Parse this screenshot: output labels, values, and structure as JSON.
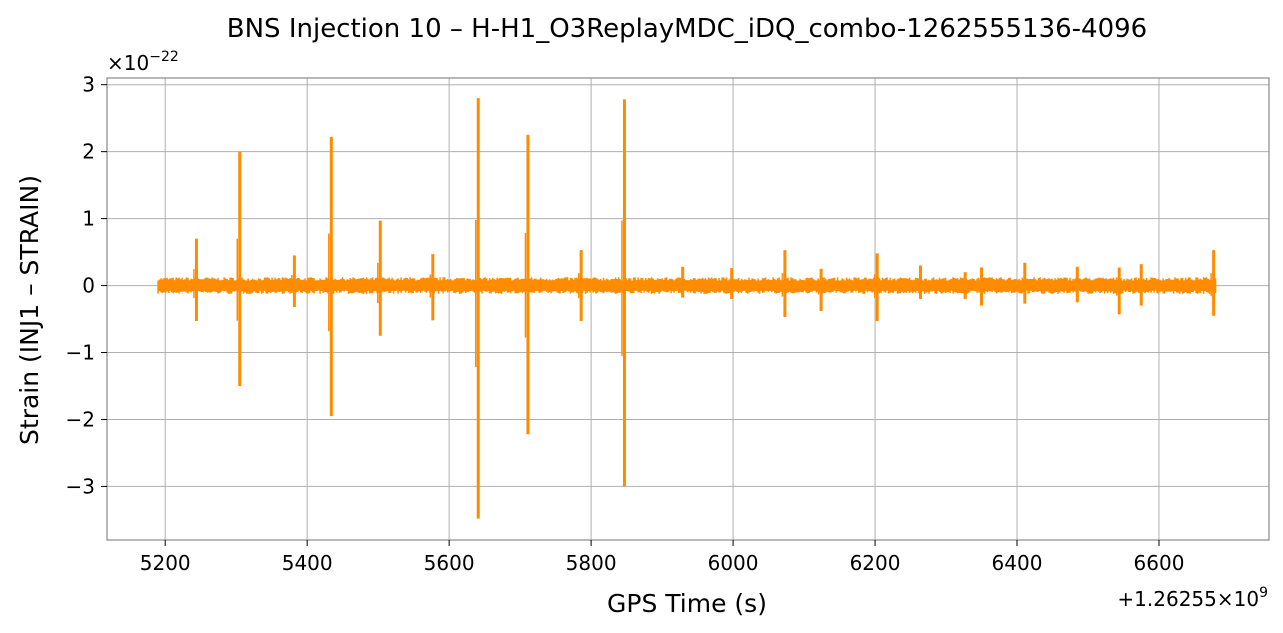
{
  "chart_data": {
    "type": "line",
    "title": "BNS Injection 10 – H-H1_O3ReplayMDC_iDQ_combo-1262555136-4096",
    "xlabel": "GPS Time (s)",
    "ylabel": "Strain (INJ1 – STRAIN)",
    "x_offset_label": "+1.26255×10",
    "x_offset_exp": "9",
    "y_scale_label": "×10",
    "y_scale_exp": "−22",
    "xlim": [
      5118,
      6755
    ],
    "ylim": [
      -3.8,
      3.1
    ],
    "xticks": [
      5200,
      5400,
      5600,
      5800,
      6000,
      6200,
      6400,
      6600
    ],
    "xtick_labels": [
      "5200",
      "5400",
      "5600",
      "5800",
      "6000",
      "6200",
      "6400",
      "6600"
    ],
    "yticks": [
      3,
      2,
      1,
      0,
      -1,
      -2,
      -3
    ],
    "ytick_labels": [
      "3",
      "2",
      "1",
      "0",
      "−1",
      "−2",
      "−3"
    ],
    "grid": true,
    "line_color": "#ff8c00",
    "data_range_x": [
      5190,
      6680
    ],
    "baseline_band": [
      -0.1,
      0.1
    ],
    "glitches": [
      {
        "x": 5244,
        "max": 0.7,
        "min": -0.53
      },
      {
        "x": 5305,
        "max": 2.0,
        "min": -1.5
      },
      {
        "x": 5382,
        "max": 0.45,
        "min": -0.32
      },
      {
        "x": 5434,
        "max": 2.22,
        "min": -1.95
      },
      {
        "x": 5503,
        "max": 0.97,
        "min": -0.75
      },
      {
        "x": 5577,
        "max": 0.47,
        "min": -0.52
      },
      {
        "x": 5641,
        "max": 2.8,
        "min": -3.48
      },
      {
        "x": 5711,
        "max": 2.25,
        "min": -2.22
      },
      {
        "x": 5786,
        "max": 0.53,
        "min": -0.53
      },
      {
        "x": 5847,
        "max": 2.78,
        "min": -3.0
      },
      {
        "x": 5929,
        "max": 0.28,
        "min": -0.18
      },
      {
        "x": 5998,
        "max": 0.26,
        "min": -0.2
      },
      {
        "x": 6073,
        "max": 0.53,
        "min": -0.47
      },
      {
        "x": 6124,
        "max": 0.25,
        "min": -0.38
      },
      {
        "x": 6203,
        "max": 0.48,
        "min": -0.53
      },
      {
        "x": 6264,
        "max": 0.3,
        "min": -0.2
      },
      {
        "x": 6327,
        "max": 0.2,
        "min": -0.2
      },
      {
        "x": 6350,
        "max": 0.27,
        "min": -0.3
      },
      {
        "x": 6411,
        "max": 0.34,
        "min": -0.27
      },
      {
        "x": 6485,
        "max": 0.28,
        "min": -0.25
      },
      {
        "x": 6544,
        "max": 0.27,
        "min": -0.43
      },
      {
        "x": 6575,
        "max": 0.32,
        "min": -0.3
      },
      {
        "x": 6677,
        "max": 0.53,
        "min": -0.45
      }
    ]
  }
}
